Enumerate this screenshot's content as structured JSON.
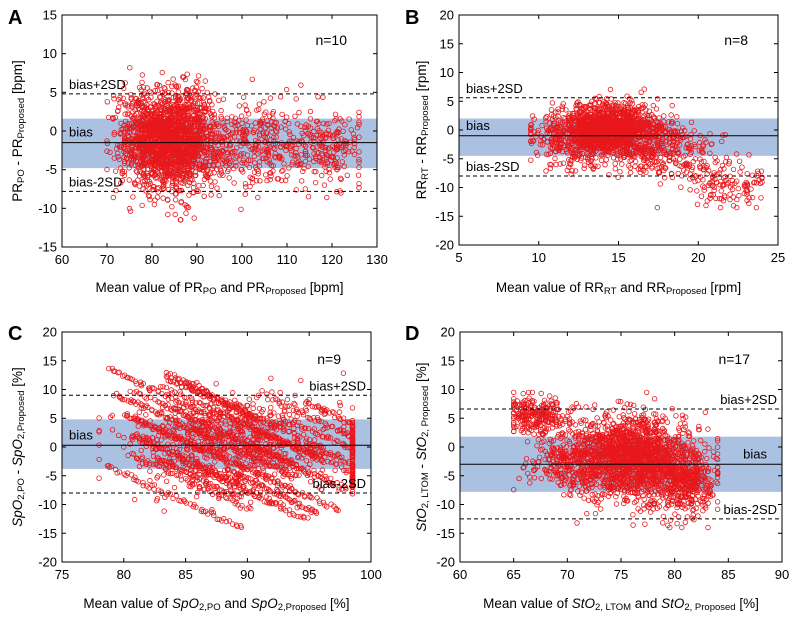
{
  "figure": {
    "style": {
      "band_color": "#aac1e2",
      "point_color": "#e8181c",
      "line_color": "#000000"
    }
  },
  "chart_data": [
    {
      "panel_letter": "A",
      "type": "scatter",
      "n_text": "n=10",
      "xlabel": [
        {
          "t": "Mean value of PR"
        },
        {
          "t": "PO",
          "sub": true
        },
        {
          "t": " and PR"
        },
        {
          "t": "Proposed",
          "sub": true
        },
        {
          "t": " [bpm]"
        }
      ],
      "ylabel": [
        {
          "t": "PR"
        },
        {
          "t": "PO",
          "sub": true
        },
        {
          "t": " - PR"
        },
        {
          "t": "Proposed",
          "sub": true
        },
        {
          "t": " [bpm]"
        }
      ],
      "xlim": [
        60,
        130
      ],
      "ylim": [
        -15,
        15
      ],
      "xticks": [
        60,
        70,
        80,
        90,
        100,
        110,
        120,
        130
      ],
      "yticks": [
        -15,
        -10,
        -5,
        0,
        5,
        10,
        15
      ],
      "bias": -1.5,
      "upper_loa": 4.8,
      "lower_loa": -7.8,
      "band": [
        -4.8,
        1.6
      ],
      "labels": {
        "upper": "bias+2SD",
        "bias": "bias",
        "lower": "bias-2SD"
      },
      "label_side": "left",
      "scatter_model": {
        "clusters": [
          [
            85,
            -1.2,
            5,
            3.2,
            1600
          ],
          [
            77,
            -0.5,
            3,
            3,
            250
          ],
          [
            105,
            -1.8,
            9,
            2.6,
            450
          ],
          [
            120,
            -2.5,
            3,
            2.2,
            100
          ]
        ],
        "xr": [
          70,
          126
        ],
        "yr": [
          -11.5,
          11
        ]
      }
    },
    {
      "panel_letter": "B",
      "type": "scatter",
      "n_text": "n=8",
      "xlabel": [
        {
          "t": "Mean value of RR"
        },
        {
          "t": "RT",
          "sub": true
        },
        {
          "t": " and RR"
        },
        {
          "t": "Proposed",
          "sub": true
        },
        {
          "t": " [rpm]"
        }
      ],
      "ylabel": [
        {
          "t": "RR"
        },
        {
          "t": "RT",
          "sub": true
        },
        {
          "t": " - RR"
        },
        {
          "t": "Proposed",
          "sub": true
        },
        {
          "t": " [rpm]"
        }
      ],
      "xlim": [
        5,
        25
      ],
      "ylim": [
        -20,
        20
      ],
      "xticks": [
        5,
        10,
        15,
        20,
        25
      ],
      "yticks": [
        -20,
        -15,
        -10,
        -5,
        0,
        5,
        10,
        15,
        20
      ],
      "bias": -1.0,
      "upper_loa": 5.6,
      "lower_loa": -8.0,
      "band": [
        -4.5,
        2.0
      ],
      "labels": {
        "upper": "bias+2SD",
        "bias": "bias",
        "lower": "bias-2SD"
      },
      "label_side": "left",
      "scatter_model": {
        "clusters": [
          [
            14.5,
            0,
            1.6,
            2.2,
            1500
          ],
          [
            12,
            -2,
            1.5,
            2.5,
            200
          ],
          [
            18,
            -4,
            1.6,
            2.5,
            250
          ],
          [
            21.5,
            -9.5,
            1.4,
            2.2,
            120
          ]
        ],
        "xr": [
          9.5,
          24
        ],
        "yr": [
          -13.5,
          11
        ]
      }
    },
    {
      "panel_letter": "C",
      "type": "scatter",
      "n_text": "n=9",
      "xlabel": [
        {
          "t": "Mean value of "
        },
        {
          "t": "SpO",
          "italic": true
        },
        {
          "t": "2,PO",
          "sub": true
        },
        {
          "t": " and "
        },
        {
          "t": "SpO",
          "italic": true
        },
        {
          "t": "2,Proposed",
          "sub": true
        },
        {
          "t": " [%]"
        }
      ],
      "ylabel": [
        {
          "t": "SpO",
          "italic": true
        },
        {
          "t": "2,PO",
          "sub": true
        },
        {
          "t": " - "
        },
        {
          "t": "SpO",
          "italic": true
        },
        {
          "t": "2,Proposed",
          "sub": true
        },
        {
          "t": " [%]"
        }
      ],
      "xlim": [
        75,
        100
      ],
      "ylim": [
        -20,
        20
      ],
      "xticks": [
        75,
        80,
        85,
        90,
        95,
        100
      ],
      "yticks": [
        -20,
        -15,
        -10,
        -5,
        0,
        5,
        10,
        15,
        20
      ],
      "bias": 0.3,
      "upper_loa": 9.0,
      "lower_loa": -8.0,
      "band": [
        -3.8,
        4.8
      ],
      "labels": {
        "upper": "bias+2SD",
        "bias": "bias",
        "lower": "bias-2SD"
      },
      "label_side": "mixed",
      "scatter_model": {
        "diagonal": true,
        "xr": [
          78,
          98.5
        ],
        "yr": [
          -15.5,
          19
        ]
      }
    },
    {
      "panel_letter": "D",
      "type": "scatter",
      "n_text": "n=17",
      "xlabel": [
        {
          "t": "Mean value of "
        },
        {
          "t": "StO",
          "italic": true
        },
        {
          "t": "2, LTOM",
          "sub": true
        },
        {
          "t": " and "
        },
        {
          "t": "StO",
          "italic": true
        },
        {
          "t": "2, Proposed",
          "sub": true
        },
        {
          "t": " [%]"
        }
      ],
      "ylabel": [
        {
          "t": "StO",
          "italic": true
        },
        {
          "t": "2, LTOM",
          "sub": true
        },
        {
          "t": " - "
        },
        {
          "t": "StO",
          "italic": true
        },
        {
          "t": "2, Proposed",
          "sub": true
        },
        {
          "t": " [%]"
        }
      ],
      "xlim": [
        60,
        90
      ],
      "ylim": [
        -20,
        20
      ],
      "xticks": [
        60,
        65,
        70,
        75,
        80,
        85,
        90
      ],
      "yticks": [
        -20,
        -15,
        -10,
        -5,
        0,
        5,
        10,
        15,
        20
      ],
      "bias": -3.0,
      "upper_loa": 6.6,
      "lower_loa": -12.5,
      "band": [
        -7.8,
        1.8
      ],
      "labels": {
        "upper": "bias+2SD",
        "bias": "bias",
        "lower": "bias-2SD"
      },
      "label_side": "right",
      "scatter_model": {
        "clusters": [
          [
            76,
            -2,
            2.8,
            3.6,
            1700
          ],
          [
            67,
            5.5,
            1.5,
            1.6,
            250
          ],
          [
            81,
            -6,
            1.4,
            3,
            400
          ],
          [
            70,
            -2,
            2,
            2.5,
            250
          ]
        ],
        "xr": [
          65,
          84
        ],
        "yr": [
          -14,
          9.5
        ]
      }
    }
  ]
}
